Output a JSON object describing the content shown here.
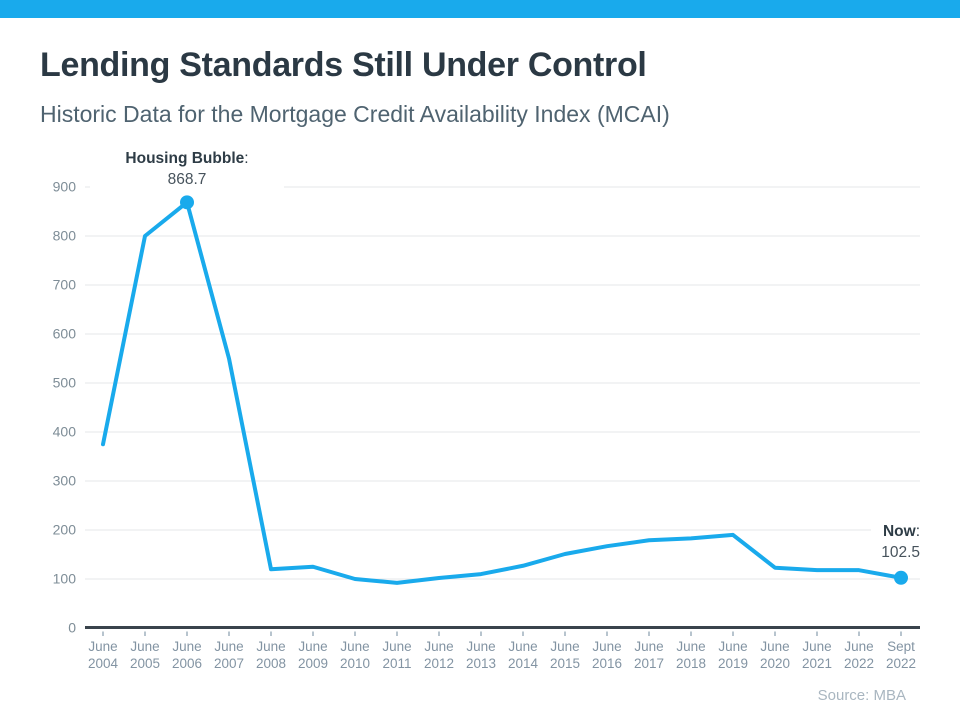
{
  "page": {
    "title": "Lending Standards Still Under Control",
    "subtitle": "Historic Data for the Mortgage Credit Availability Index (MCAI)",
    "source": "Source: MBA"
  },
  "colors": {
    "accent": "#19aaec",
    "grid": "#e4e7e9",
    "axis": "#39434c",
    "tick": "#9fb0bd",
    "y_tick_label": "#7e8d97",
    "x_tick_label": "#8394a3"
  },
  "annotations": {
    "peak": {
      "label": "Housing Bubble",
      "separator": ":",
      "value": "868.7"
    },
    "now": {
      "label": "Now",
      "separator": ":",
      "value": "102.5"
    }
  },
  "chart_data": {
    "type": "line",
    "title": "Historic Data for the Mortgage Credit Availability Index (MCAI)",
    "categories": [
      "June 2004",
      "June 2005",
      "June 2006",
      "June 2007",
      "June 2008",
      "June 2009",
      "June 2010",
      "June 2011",
      "June 2012",
      "June 2013",
      "June 2014",
      "June 2015",
      "June 2016",
      "June 2017",
      "June 2018",
      "June 2019",
      "June 2020",
      "June 2021",
      "June 2022",
      "Sept 2022"
    ],
    "values": [
      375,
      800,
      868.7,
      550,
      120,
      125,
      100,
      92,
      102,
      110,
      127,
      151,
      167,
      179,
      183,
      190,
      123,
      118,
      118,
      102.5
    ],
    "xlabel": "",
    "ylabel": "",
    "ylim": [
      0,
      900
    ],
    "yticks": [
      0,
      100,
      200,
      300,
      400,
      500,
      600,
      700,
      800,
      900
    ],
    "grid": true,
    "legend": false,
    "line_color": "#19aaec",
    "marker_indices": [
      2,
      19
    ],
    "annotated_points": [
      {
        "category": "June 2006",
        "value": 868.7,
        "label": "Housing Bubble"
      },
      {
        "category": "Sept 2022",
        "value": 102.5,
        "label": "Now"
      }
    ]
  }
}
